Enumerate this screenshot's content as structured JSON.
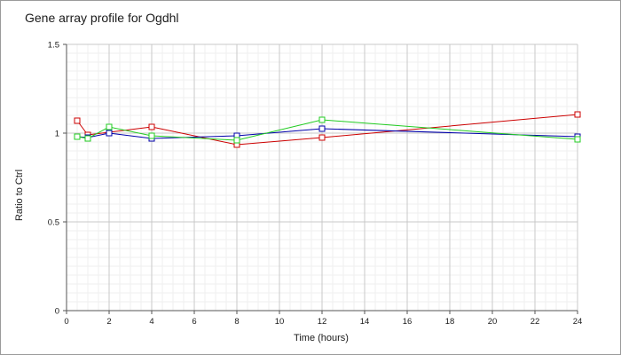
{
  "chart_data": {
    "type": "line",
    "title": "Gene array profile for Ogdhl",
    "xlabel": "Time (hours)",
    "ylabel": "Ratio to Ctrl",
    "xlim": [
      0,
      24
    ],
    "ylim": [
      0,
      1.5
    ],
    "x_ticks": [
      "0",
      "2",
      "4",
      "6",
      "8",
      "10",
      "12",
      "14",
      "16",
      "18",
      "20",
      "22",
      "24"
    ],
    "y_ticks": [
      "0",
      "0.5",
      "1",
      "1.5"
    ],
    "grid": true,
    "legend": "none",
    "series": [
      {
        "color": "#cc0000",
        "marker": "open-square",
        "x": [
          0.5,
          1,
          4,
          8,
          12,
          24
        ],
        "y": [
          1.07,
          0.99,
          1.035,
          0.935,
          0.975,
          1.105
        ]
      },
      {
        "color": "#0000aa",
        "marker": "open-square",
        "x": [
          0.5,
          1,
          2,
          4,
          8,
          12,
          24
        ],
        "y": [
          0.98,
          0.975,
          1.0,
          0.97,
          0.985,
          1.025,
          0.98
        ]
      },
      {
        "color": "#22cc22",
        "marker": "open-square",
        "x": [
          0.5,
          1,
          2,
          4,
          8,
          12,
          24
        ],
        "y": [
          0.98,
          0.97,
          1.035,
          0.985,
          0.96,
          1.075,
          0.965
        ]
      }
    ]
  }
}
